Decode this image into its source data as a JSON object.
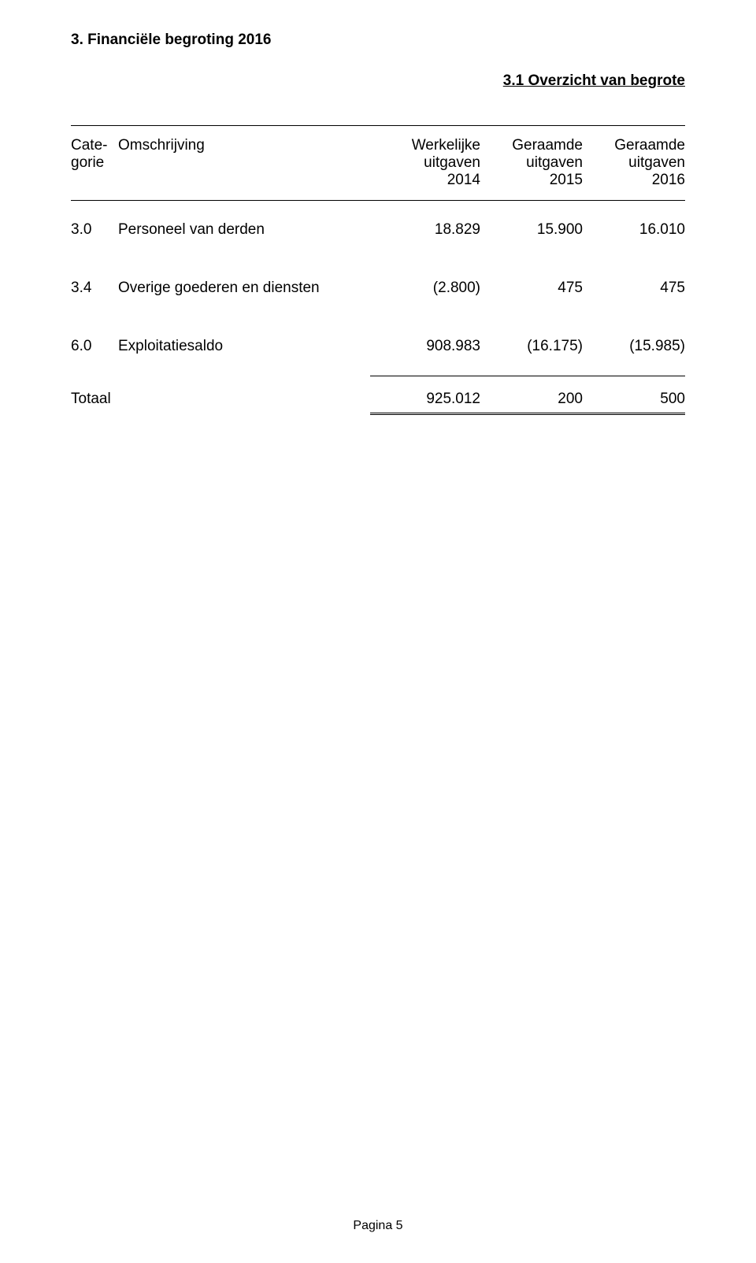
{
  "section_title": "3. Financiële begroting 2016",
  "subsection_title": "3.1 Overzicht van begrote",
  "header": {
    "cat1": "Cate-",
    "cat2": "gorie",
    "desc": "Omschrijving",
    "c1a": "Werkelijke",
    "c1b": "uitgaven",
    "c1c": "2014",
    "c2a": "Geraamde",
    "c2b": "uitgaven",
    "c2c": "2015",
    "c3a": "Geraamde",
    "c3b": "uitgaven",
    "c3c": "2016"
  },
  "rows": [
    {
      "cat": "3.0",
      "desc": "Personeel van derden",
      "v1": "18.829",
      "v2": "15.900",
      "v3": "16.010"
    },
    {
      "cat": "3.4",
      "desc": "Overige goederen en diensten",
      "v1": "(2.800)",
      "v2": "475",
      "v3": "475"
    },
    {
      "cat": "6.0",
      "desc": "Exploitatiesaldo",
      "v1": "908.983",
      "v2": "(16.175)",
      "v3": "(15.985)"
    }
  ],
  "total": {
    "label": "Totaal",
    "v1": "925.012",
    "v2": "200",
    "v3": "500"
  },
  "footer": "Pagina 5",
  "style": {
    "font_size_pt": 14,
    "text_color": "#000000",
    "background": "#ffffff",
    "rule_color": "#000000"
  }
}
